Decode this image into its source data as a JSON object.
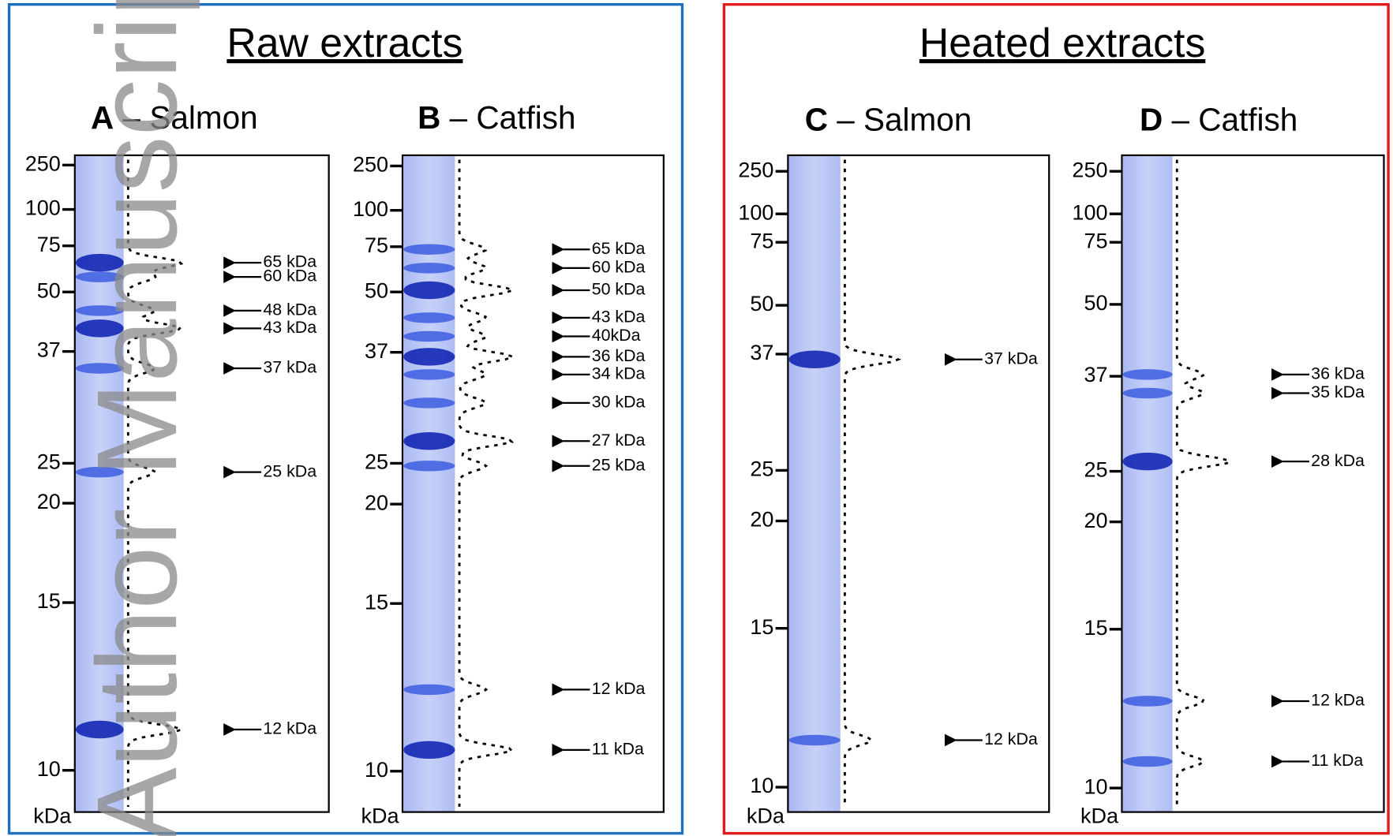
{
  "watermark": "Author Manuscript",
  "groups": [
    {
      "title": "Raw extracts",
      "panels": [
        {
          "letter": "A",
          "title": "– Salmon",
          "unit": "kDa",
          "markers": [
            250,
            100,
            75,
            50,
            37,
            25,
            20,
            15,
            10
          ],
          "bands": [
            "65 kDa",
            "60 kDa",
            "48 kDa",
            "43 kDa",
            "37 kDa",
            "25 kDa",
            "12 kDa"
          ]
        },
        {
          "letter": "B",
          "title": "– Catfish",
          "unit": "kDa",
          "markers": [
            250,
            100,
            75,
            50,
            37,
            25,
            20,
            15,
            10
          ],
          "bands": [
            "65 kDa",
            "60 kDa",
            "50 kDa",
            "43 kDa",
            "40kDa",
            "36 kDa",
            "34 kDa",
            "30 kDa",
            "27 kDa",
            "25 kDa",
            "12 kDa",
            "11 kDa"
          ]
        }
      ]
    },
    {
      "title": "Heated extracts",
      "panels": [
        {
          "letter": "C",
          "title": "– Salmon",
          "unit": "kDa",
          "markers": [
            250,
            100,
            75,
            50,
            37,
            25,
            20,
            15,
            10
          ],
          "bands": [
            "37 kDa",
            "12 kDa"
          ]
        },
        {
          "letter": "D",
          "title": "– Catfish",
          "unit": "kDa",
          "markers": [
            250,
            100,
            75,
            50,
            37,
            25,
            20,
            15,
            10
          ],
          "bands": [
            "36 kDa",
            "35 kDa",
            "28 kDa",
            "12 kDa",
            "11 kDa"
          ]
        }
      ]
    }
  ]
}
